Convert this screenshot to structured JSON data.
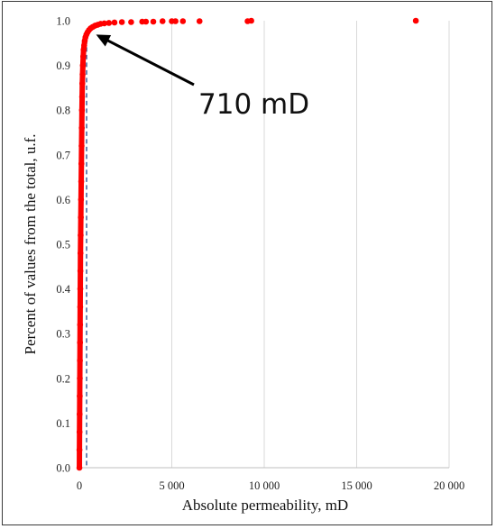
{
  "chart_data": {
    "type": "scatter",
    "title": "",
    "xlabel": "Absolute permeability,  mD",
    "ylabel": "Percent of values from the total, u.f.",
    "xlim": [
      0,
      20000
    ],
    "ylim": [
      0,
      1.0
    ],
    "x_ticks": [
      0,
      5000,
      10000,
      15000,
      20000
    ],
    "x_tick_labels": [
      "0",
      "5 000",
      "10 000",
      "15 000",
      "20 000"
    ],
    "y_ticks": [
      0,
      0.1,
      0.2,
      0.3,
      0.4,
      0.5,
      0.6,
      0.7,
      0.8,
      0.9,
      1.0
    ],
    "y_tick_labels": [
      "0.0",
      "0.1",
      "0.2",
      "0.3",
      "0.4",
      "0.5",
      "0.6",
      "0.7",
      "0.8",
      "0.9",
      "1.0"
    ],
    "grid": "vertical",
    "marker_color": "#ff0000",
    "reference_line": {
      "x": 390,
      "style": "dashed",
      "color": "#2f5597"
    },
    "annotation": {
      "text": "710 mD",
      "points_to": {
        "x": 710,
        "y": 0.975
      }
    },
    "series": [
      {
        "points": [
          [
            2,
            0.0
          ],
          [
            5,
            0.04
          ],
          [
            10,
            0.08
          ],
          [
            15,
            0.12
          ],
          [
            20,
            0.16
          ],
          [
            25,
            0.2
          ],
          [
            30,
            0.24
          ],
          [
            35,
            0.28
          ],
          [
            40,
            0.32
          ],
          [
            45,
            0.36
          ],
          [
            50,
            0.4
          ],
          [
            55,
            0.44
          ],
          [
            60,
            0.48
          ],
          [
            70,
            0.52
          ],
          [
            80,
            0.56
          ],
          [
            90,
            0.6
          ],
          [
            100,
            0.64
          ],
          [
            110,
            0.68
          ],
          [
            120,
            0.72
          ],
          [
            130,
            0.76
          ],
          [
            140,
            0.8
          ],
          [
            150,
            0.83
          ],
          [
            160,
            0.86
          ],
          [
            175,
            0.88
          ],
          [
            190,
            0.9
          ],
          [
            210,
            0.92
          ],
          [
            230,
            0.935
          ],
          [
            260,
            0.945
          ],
          [
            290,
            0.955
          ],
          [
            330,
            0.963
          ],
          [
            380,
            0.969
          ],
          [
            440,
            0.974
          ],
          [
            520,
            0.979
          ],
          [
            610,
            0.983
          ],
          [
            720,
            0.986
          ],
          [
            850,
            0.989
          ],
          [
            1000,
            0.991
          ],
          [
            1150,
            0.993
          ],
          [
            1350,
            0.994
          ],
          [
            1600,
            0.995
          ],
          [
            1900,
            0.996
          ],
          [
            2300,
            0.997
          ],
          [
            2800,
            0.997
          ],
          [
            3400,
            0.998
          ],
          [
            3600,
            0.998
          ],
          [
            4000,
            0.998
          ],
          [
            4500,
            0.999
          ],
          [
            5000,
            0.999
          ],
          [
            5200,
            0.999
          ],
          [
            5600,
            0.999
          ],
          [
            6500,
            0.999
          ],
          [
            9100,
            0.999
          ],
          [
            9300,
            1.0
          ],
          [
            18200,
            1.0
          ]
        ]
      }
    ]
  }
}
